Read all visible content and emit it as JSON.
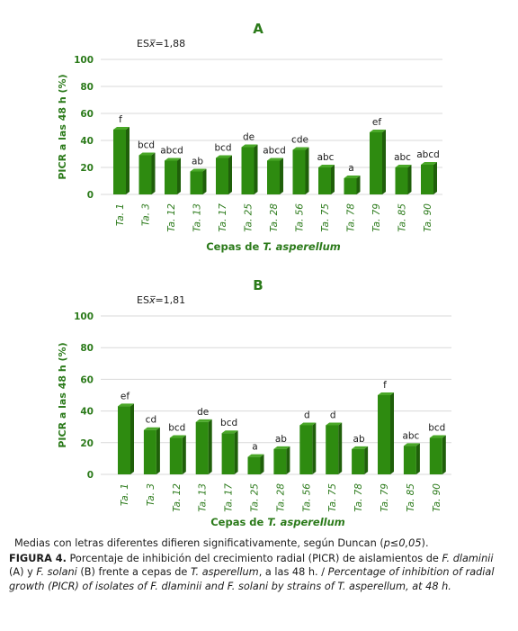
{
  "colors": {
    "bar_front": "#2e8b10",
    "bar_side": "#1f5f0a",
    "bar_top": "#4aa828",
    "text_green": "#2b7a1a",
    "grid": "#d9d9d9"
  },
  "chart_data": [
    {
      "type": "bar",
      "title": "A",
      "se_label": "ES",
      "se_symbol": "x̅",
      "se_value": "=1,88",
      "ylabel": "PICR a las 48 h (%)",
      "xlabel_prefix": "Cepas de ",
      "xlabel_species": "T. asperellum",
      "ylim": [
        0,
        100
      ],
      "yticks": [
        0,
        20,
        40,
        60,
        80,
        100
      ],
      "categories": [
        "Ta. 1",
        "Ta. 3",
        "Ta. 12",
        "Ta. 13",
        "Ta. 17",
        "Ta. 25",
        "Ta. 28",
        "Ta. 56",
        "Ta. 75",
        "Ta. 78",
        "Ta. 79",
        "Ta. 85",
        "Ta. 90"
      ],
      "values": [
        48,
        29,
        25,
        17,
        27,
        35,
        25,
        33,
        20,
        12,
        46,
        20,
        22
      ],
      "letters": [
        "f",
        "bcd",
        "abcd",
        "ab",
        "bcd",
        "de",
        "abcd",
        "cde",
        "abc",
        "a",
        "ef",
        "abc",
        "abcd"
      ]
    },
    {
      "type": "bar",
      "title": "B",
      "se_label": "ES",
      "se_symbol": "x̅",
      "se_value": "=1,81",
      "ylabel": "PICR a las 48 h (%)",
      "xlabel_prefix": "Cepas de ",
      "xlabel_species": "T. asperellum",
      "ylim": [
        0,
        100
      ],
      "yticks": [
        0,
        20,
        40,
        60,
        80,
        100
      ],
      "categories": [
        "Ta. 1",
        "Ta. 3",
        "Ta. 12",
        "Ta. 13",
        "Ta. 17",
        "Ta. 25",
        "Ta. 28",
        "Ta. 56",
        "Ta. 75",
        "Ta. 78",
        "Ta. 79",
        "Ta. 85",
        "Ta. 90"
      ],
      "values": [
        43,
        28,
        23,
        33,
        26,
        11,
        16,
        31,
        31,
        16,
        50,
        18,
        23
      ],
      "letters": [
        "ef",
        "cd",
        "bcd",
        "de",
        "bcd",
        "a",
        "ab",
        "d",
        "d",
        "ab",
        "f",
        "abc",
        "bcd"
      ]
    }
  ],
  "caption": {
    "note": "Medias con letras diferentes difieren significativamente, según Duncan (",
    "note_p": "p≤0,05",
    "note_end": ").",
    "figure_label": "FIGURA 4.",
    "es_part1": " Porcentaje de inhibición del crecimiento radial (PICR) de aislamientos de ",
    "es_fd": "F. dlaminii",
    "es_part2": " (A) y ",
    "es_fs": "F. solani",
    "es_part3": " (B) frente a cepas de ",
    "es_ta": "T. asperellum",
    "es_part4": ", a las 48 h. / ",
    "en_part1": "Percentage of inhibition of radial growth (PICR) of isolates of ",
    "en_fd": "F. dlaminii",
    "en_part2": " and ",
    "en_fs": "F. solani",
    "en_part3": " by strains of ",
    "en_ta": "T. asperellum",
    "en_part4": ", at 48 h."
  }
}
